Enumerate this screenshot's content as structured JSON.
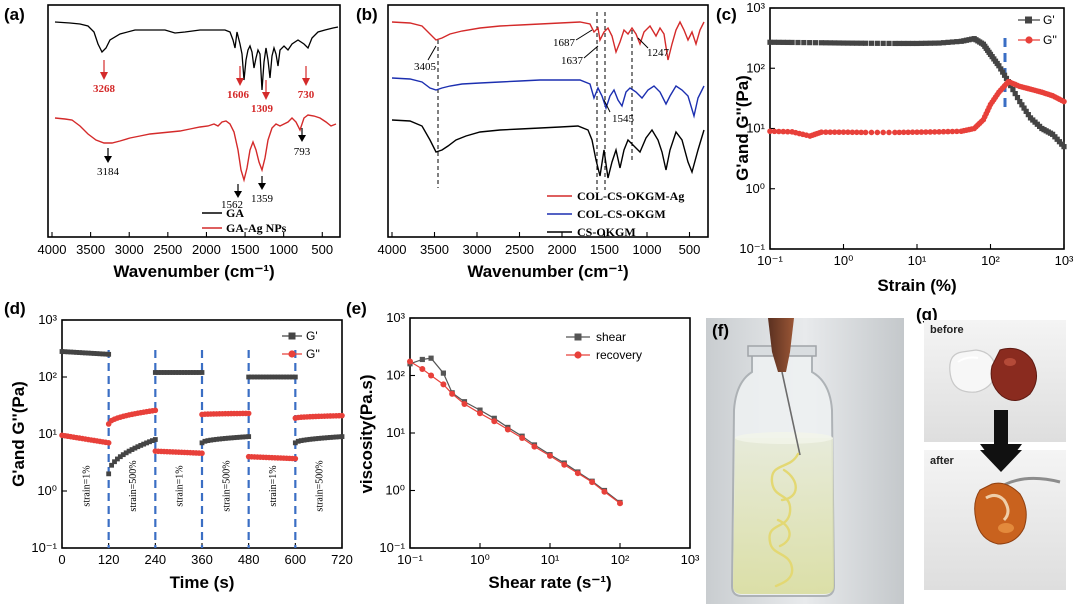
{
  "chart_data": [
    {
      "panel": "(a)",
      "type": "line",
      "xlabel": "Wavenumber (cm⁻¹)",
      "ylabel": "",
      "xlim": [
        4000,
        400
      ],
      "xticks": [
        "4000",
        "3500",
        "3000",
        "2500",
        "2000",
        "1500",
        "1000",
        "500"
      ],
      "series": [
        {
          "name": "GA",
          "color": "#000000",
          "peaks": [
            "3268",
            "1606",
            "1309",
            "730"
          ]
        },
        {
          "name": "GA-Ag NPs",
          "color": "#d42a2a",
          "peaks": [
            "3184",
            "1562",
            "1359",
            "793"
          ]
        }
      ],
      "annotations": [
        {
          "text": "3268",
          "color": "red"
        },
        {
          "text": "1606",
          "color": "red"
        },
        {
          "text": "1309",
          "color": "red"
        },
        {
          "text": "730",
          "color": "red"
        },
        {
          "text": "3184",
          "color": "black"
        },
        {
          "text": "1562",
          "color": "black"
        },
        {
          "text": "1359",
          "color": "black"
        },
        {
          "text": "793",
          "color": "black"
        }
      ]
    },
    {
      "panel": "(b)",
      "type": "line",
      "xlabel": "Wavenumber (cm⁻¹)",
      "xlim": [
        4000,
        400
      ],
      "xticks": [
        "4000",
        "3500",
        "3000",
        "2500",
        "2000",
        "1500",
        "1000",
        "500"
      ],
      "series": [
        {
          "name": "COL-CS-OKGM-Ag",
          "color": "#d42a2a"
        },
        {
          "name": "COL-CS-OKGM",
          "color": "#1c2fb0"
        },
        {
          "name": "CS-OKGM",
          "color": "#000000"
        }
      ],
      "annotations": [
        "3405",
        "1687",
        "1637",
        "1545",
        "1247"
      ],
      "dashed_lines_at": [
        3405,
        1637,
        1545,
        1247
      ]
    },
    {
      "panel": "(c)",
      "type": "scatter",
      "xlabel": "Strain (%)",
      "ylabel": "G'and G''(Pa)",
      "xscale": "log",
      "yscale": "log",
      "xlim": [
        0.1,
        1000
      ],
      "ylim": [
        0.1,
        1000
      ],
      "xticks": [
        "10⁻¹",
        "10⁰",
        "10¹",
        "10²",
        "10³"
      ],
      "yticks": [
        "10⁻¹",
        "10⁰",
        "10¹",
        "10²",
        "10³"
      ],
      "crossover_strain": 175,
      "series": [
        {
          "name": "G'",
          "color": "#444444",
          "marker": "square",
          "x": [
            0.1,
            0.2,
            0.5,
            1,
            2,
            5,
            10,
            20,
            40,
            60,
            80,
            100,
            130,
            175,
            250,
            350,
            500,
            700,
            1000
          ],
          "y": [
            270,
            268,
            265,
            262,
            260,
            258,
            258,
            262,
            280,
            310,
            250,
            170,
            110,
            60,
            28,
            15,
            10,
            8,
            5
          ]
        },
        {
          "name": "G''",
          "color": "#e8403a",
          "marker": "circle",
          "x": [
            0.1,
            0.2,
            0.35,
            0.5,
            1,
            2,
            5,
            10,
            20,
            40,
            60,
            80,
            100,
            130,
            175,
            250,
            350,
            500,
            700,
            1000
          ],
          "y": [
            9,
            8.8,
            7.5,
            8.7,
            8.7,
            8.6,
            8.6,
            8.7,
            8.8,
            9.0,
            10,
            14,
            25,
            40,
            60,
            50,
            45,
            40,
            35,
            28
          ]
        }
      ]
    },
    {
      "panel": "(d)",
      "type": "scatter",
      "xlabel": "Time (s)",
      "ylabel": "G'and G''(Pa)",
      "yscale": "log",
      "xlim": [
        0,
        720
      ],
      "ylim": [
        0.1,
        1000
      ],
      "xticks": [
        "0",
        "120",
        "240",
        "360",
        "480",
        "600",
        "720"
      ],
      "yticks": [
        "10⁻¹",
        "10⁰",
        "10¹",
        "10²",
        "10³"
      ],
      "segment_labels": [
        "strain=1%",
        "strain=500%",
        "strain=1%",
        "strain=500%",
        "strain=1%",
        "strain=500%"
      ],
      "segments": [
        {
          "t": [
            0,
            120
          ],
          "strain": "1%",
          "G1": [
            280,
            250
          ],
          "G2": [
            9.5,
            7.0
          ]
        },
        {
          "t": [
            120,
            240
          ],
          "strain": "500%",
          "G1": [
            2.0,
            8.0
          ],
          "G2": [
            15,
            26
          ]
        },
        {
          "t": [
            240,
            360
          ],
          "strain": "1%",
          "G1": [
            120,
            120
          ],
          "G2": [
            5.0,
            4.6
          ]
        },
        {
          "t": [
            360,
            480
          ],
          "strain": "500%",
          "G1": [
            7.0,
            9.0
          ],
          "G2": [
            22,
            23
          ]
        },
        {
          "t": [
            480,
            600
          ],
          "strain": "1%",
          "G1": [
            100,
            100
          ],
          "G2": [
            4.0,
            3.7
          ]
        },
        {
          "t": [
            600,
            720
          ],
          "strain": "500%",
          "G1": [
            7.0,
            9.0
          ],
          "G2": [
            19,
            21
          ]
        }
      ],
      "series_names": [
        "G'",
        "G''"
      ]
    },
    {
      "panel": "(e)",
      "type": "line",
      "xlabel": "Shear rate (s⁻¹)",
      "ylabel": "viscosity(Pa.s)",
      "xscale": "log",
      "yscale": "log",
      "xlim": [
        0.1,
        1000
      ],
      "ylim": [
        0.1,
        1000
      ],
      "xticks": [
        "10⁻¹",
        "10⁰",
        "10¹",
        "10²",
        "10³"
      ],
      "yticks": [
        "10⁻¹",
        "10⁰",
        "10¹",
        "10²",
        "10³"
      ],
      "series": [
        {
          "name": "shear",
          "color": "#555555",
          "marker": "square",
          "x": [
            0.1,
            0.15,
            0.2,
            0.3,
            0.4,
            0.6,
            1,
            1.6,
            2.5,
            4,
            6,
            10,
            16,
            25,
            40,
            60,
            100
          ],
          "y": [
            160,
            190,
            200,
            110,
            50,
            35,
            25,
            18,
            12.5,
            8.8,
            6.2,
            4.2,
            3.0,
            2.1,
            1.45,
            1.0,
            0.62
          ]
        },
        {
          "name": "recovery",
          "color": "#e8403a",
          "marker": "circle",
          "x": [
            0.1,
            0.15,
            0.2,
            0.3,
            0.4,
            0.6,
            1,
            1.6,
            2.5,
            4,
            6,
            10,
            16,
            25,
            40,
            60,
            100
          ],
          "y": [
            175,
            130,
            100,
            70,
            48,
            32,
            22,
            16,
            11.5,
            8.2,
            5.8,
            4.0,
            2.8,
            2.0,
            1.4,
            0.95,
            0.6
          ]
        }
      ]
    }
  ],
  "panels": {
    "a": "(a)",
    "b": "(b)",
    "c": "(c)",
    "d": "(d)",
    "e": "(e)",
    "f": "(f)",
    "g": "(g)"
  },
  "photos": {
    "g_before": "before",
    "g_after": "after"
  },
  "colors": {
    "red": "#d42a2a",
    "blue": "#1c2fb0",
    "dash_blue": "#3a6ec4",
    "black": "#000000"
  }
}
